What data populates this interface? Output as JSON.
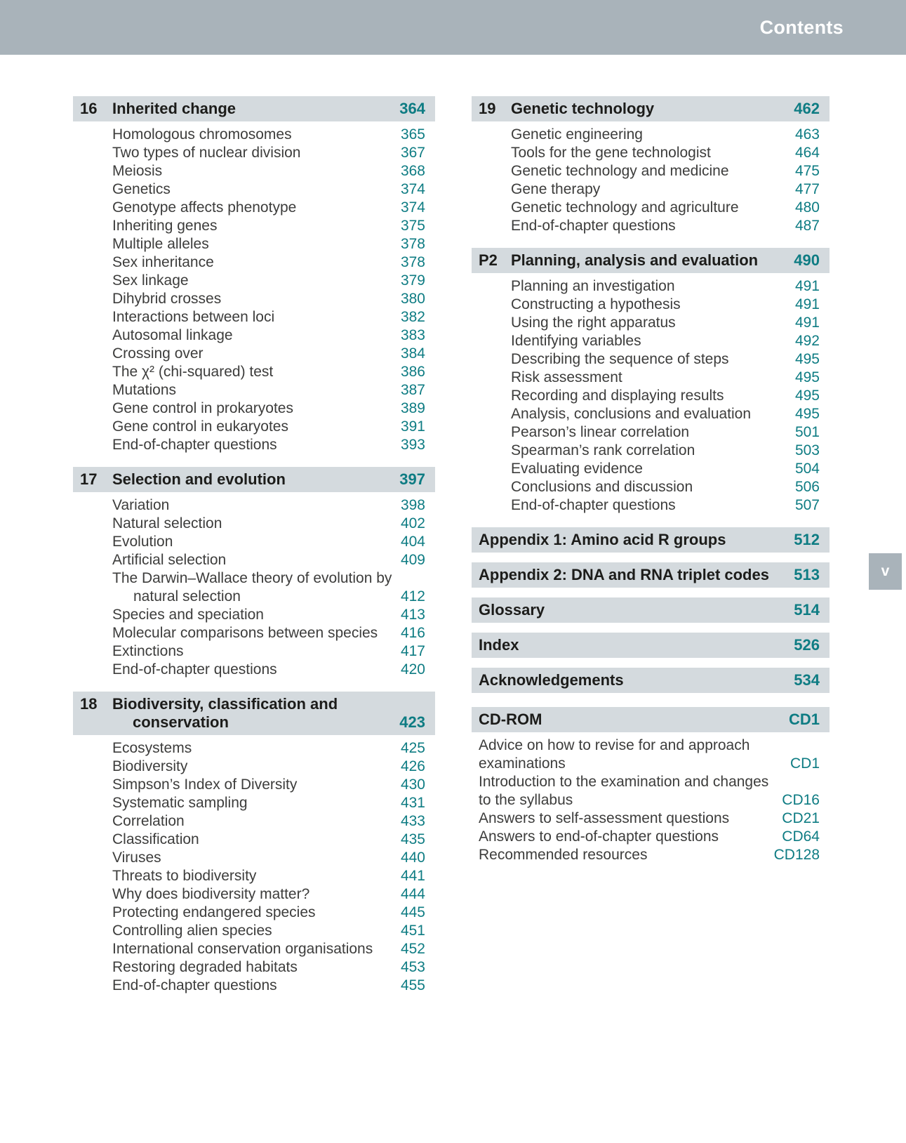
{
  "header": {
    "title": "Contents"
  },
  "side_tab": {
    "label": "v"
  },
  "colors": {
    "header_bg": "#a9b3ba",
    "band_bg": "#d4dade",
    "accent_teal": "#0e7c83",
    "title_text": "#1c1c1a",
    "body_text": "#3d3d3c"
  },
  "columns": {
    "left": {
      "sections": [
        {
          "kind": "chapter",
          "number": "16",
          "title": "Inherited change",
          "page": "364",
          "items": [
            {
              "label": "Homologous chromosomes",
              "page": "365"
            },
            {
              "label": "Two types of nuclear division",
              "page": "367"
            },
            {
              "label": "Meiosis",
              "page": "368"
            },
            {
              "label": "Genetics",
              "page": "374"
            },
            {
              "label": "Genotype affects phenotype",
              "page": "374"
            },
            {
              "label": "Inheriting genes",
              "page": "375"
            },
            {
              "label": "Multiple alleles",
              "page": "378"
            },
            {
              "label": "Sex inheritance",
              "page": "378"
            },
            {
              "label": "Sex linkage",
              "page": "379"
            },
            {
              "label": "Dihybrid crosses",
              "page": "380"
            },
            {
              "label": "Interactions between loci",
              "page": "382"
            },
            {
              "label": "Autosomal linkage",
              "page": "383"
            },
            {
              "label": "Crossing over",
              "page": "384"
            },
            {
              "label": "The χ² (chi-squared) test",
              "page": "386"
            },
            {
              "label": "Mutations",
              "page": "387"
            },
            {
              "label": "Gene control in prokaryotes",
              "page": "389"
            },
            {
              "label": "Gene control in eukaryotes",
              "page": "391"
            },
            {
              "label": "End-of-chapter questions",
              "page": "393"
            }
          ]
        },
        {
          "kind": "chapter",
          "number": "17",
          "title": "Selection and evolution",
          "page": "397",
          "items": [
            {
              "label": "Variation",
              "page": "398"
            },
            {
              "label": "Natural selection",
              "page": "402"
            },
            {
              "label": "Evolution",
              "page": "404"
            },
            {
              "label": "Artificial selection",
              "page": "409"
            },
            {
              "label": "The Darwin–Wallace theory of evolution by",
              "label2": "natural selection",
              "label2_indent": true,
              "page": "412"
            },
            {
              "label": "Species and speciation",
              "page": "413"
            },
            {
              "label": "Molecular comparisons between species",
              "page": "416"
            },
            {
              "label": "Extinctions",
              "page": "417"
            },
            {
              "label": "End-of-chapter questions",
              "page": "420"
            }
          ]
        },
        {
          "kind": "chapter",
          "number": "18",
          "title": "Biodiversity, classification and",
          "title2": "conservation",
          "title2_indent": true,
          "page": "423",
          "items": [
            {
              "label": "Ecosystems",
              "page": "425"
            },
            {
              "label": "Biodiversity",
              "page": "426"
            },
            {
              "label": "Simpson’s Index of Diversity",
              "page": "430"
            },
            {
              "label": "Systematic sampling",
              "page": "431"
            },
            {
              "label": "Correlation",
              "page": "433"
            },
            {
              "label": "Classification",
              "page": "435"
            },
            {
              "label": "Viruses",
              "page": "440"
            },
            {
              "label": "Threats to biodiversity",
              "page": "441"
            },
            {
              "label": "Why does biodiversity matter?",
              "page": "444"
            },
            {
              "label": "Protecting endangered species",
              "page": "445"
            },
            {
              "label": "Controlling alien species",
              "page": "451"
            },
            {
              "label": "International conservation organisations",
              "page": "452"
            },
            {
              "label": "Restoring degraded habitats",
              "page": "453"
            },
            {
              "label": "End-of-chapter questions",
              "page": "455"
            }
          ]
        }
      ]
    },
    "right": {
      "sections": [
        {
          "kind": "chapter",
          "number": "19",
          "title": "Genetic technology",
          "page": "462",
          "items": [
            {
              "label": "Genetic engineering",
              "page": "463"
            },
            {
              "label": "Tools for the gene technologist",
              "page": "464"
            },
            {
              "label": "Genetic technology and medicine",
              "page": "475"
            },
            {
              "label": "Gene therapy",
              "page": "477"
            },
            {
              "label": "Genetic technology and agriculture",
              "page": "480"
            },
            {
              "label": "End-of-chapter questions",
              "page": "487"
            }
          ]
        },
        {
          "kind": "chapter",
          "number": "P2",
          "title": "Planning, analysis and evaluation",
          "page": "490",
          "items": [
            {
              "label": "Planning an investigation",
              "page": "491"
            },
            {
              "label": "Constructing a hypothesis",
              "page": "491"
            },
            {
              "label": "Using the right apparatus",
              "page": "491"
            },
            {
              "label": "Identifying variables",
              "page": "492"
            },
            {
              "label": "Describing the sequence of steps",
              "page": "495"
            },
            {
              "label": "Risk assessment",
              "page": "495"
            },
            {
              "label": "Recording and displaying results",
              "page": "495"
            },
            {
              "label": "Analysis, conclusions and evaluation",
              "page": "495"
            },
            {
              "label": "Pearson’s linear correlation",
              "page": "501"
            },
            {
              "label": "Spearman’s rank correlation",
              "page": "503"
            },
            {
              "label": "Evaluating evidence",
              "page": "504"
            },
            {
              "label": "Conclusions and discussion",
              "page": "506"
            },
            {
              "label": "End-of-chapter questions",
              "page": "507"
            }
          ]
        },
        {
          "kind": "heading",
          "title": "Appendix 1: Amino acid R groups",
          "page": "512"
        },
        {
          "kind": "heading",
          "title": "Appendix 2: DNA and RNA triplet codes",
          "page": "513"
        },
        {
          "kind": "heading",
          "title": "Glossary",
          "page": "514"
        },
        {
          "kind": "heading",
          "title": "Index",
          "page": "526"
        },
        {
          "kind": "heading",
          "title": "Acknowledgements",
          "page": "534"
        },
        {
          "kind": "heading",
          "title": "CD-ROM",
          "page": "CD1",
          "gap": "large",
          "items_flush": true,
          "items": [
            {
              "label": "Advice on how to revise for and approach",
              "label2": "examinations",
              "label2_indent": false,
              "page": "CD1"
            },
            {
              "label": "Introduction to the examination and changes",
              "label2": "to the syllabus",
              "label2_indent": false,
              "page": "CD16"
            },
            {
              "label": "Answers to self-assessment questions",
              "page": "CD21"
            },
            {
              "label": "Answers to end-of-chapter questions",
              "page": "CD64"
            },
            {
              "label": "Recommended resources",
              "page": "CD128"
            }
          ]
        }
      ]
    }
  }
}
